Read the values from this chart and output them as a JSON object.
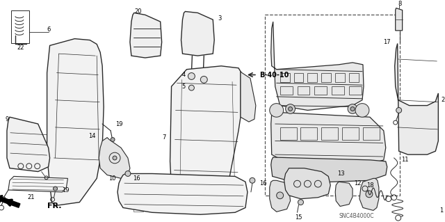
{
  "bg_color": "#ffffff",
  "line_color": "#2a2a2a",
  "label_color": "#000000",
  "ref_code": "B-40-10",
  "part_code": "SNC4B4000C",
  "fig_w": 6.4,
  "fig_h": 3.19,
  "dpi": 100
}
